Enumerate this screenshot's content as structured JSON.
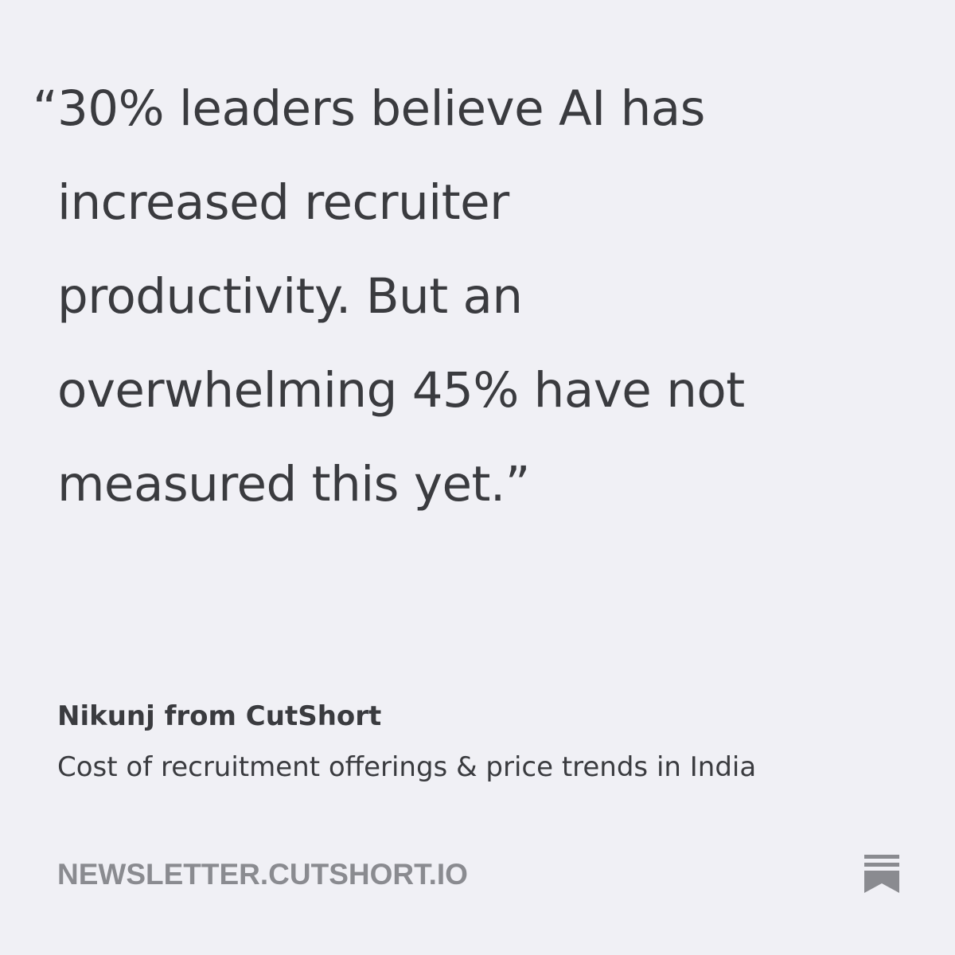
{
  "quote": {
    "open_mark": "“",
    "lines": [
      "30% leaders believe AI has",
      "increased recruiter",
      "productivity. But an",
      "overwhelming 45% have not",
      "measured this yet.”"
    ]
  },
  "author": "Nikunj from CutShort",
  "post_title": "Cost of recruitment offerings & price trends in India",
  "site": "NEWSLETTER.CUTSHORT.IO",
  "icons": {
    "publisher": "substack-bookmark-icon"
  },
  "colors": {
    "background": "#f0f0f5",
    "text": "#3a3b3f",
    "muted": "#8a8b90"
  }
}
